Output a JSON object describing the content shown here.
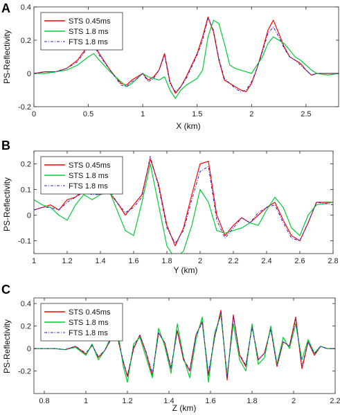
{
  "chart_data": [
    {
      "type": "line",
      "panel_label": "A",
      "xlabel": "X (km)",
      "ylabel": "PS-Reflectivity",
      "xlim": [
        0,
        2.8
      ],
      "ylim": [
        -0.2,
        0.4
      ],
      "xticks": [
        0,
        0.5,
        1,
        1.5,
        2,
        2.5
      ],
      "xtick_labels": [
        "0",
        "0.5",
        "1",
        "1.5",
        "2",
        "2.5"
      ],
      "yticks": [
        -0.2,
        0,
        0.2,
        0.4
      ],
      "ytick_labels": [
        "-0.2",
        "0",
        "0.2",
        "0.4"
      ],
      "legend_position": "top-left",
      "series": [
        {
          "name": "STS 0.45ms",
          "color": "#ff0000",
          "style": "solid",
          "x": [
            0,
            0.1,
            0.2,
            0.3,
            0.4,
            0.5,
            0.55,
            0.6,
            0.7,
            0.8,
            0.85,
            0.9,
            0.95,
            1.0,
            1.05,
            1.1,
            1.15,
            1.2,
            1.25,
            1.3,
            1.35,
            1.4,
            1.45,
            1.5,
            1.55,
            1.6,
            1.65,
            1.7,
            1.75,
            1.8,
            1.85,
            1.9,
            1.95,
            2.0,
            2.05,
            2.1,
            2.15,
            2.2,
            2.25,
            2.3,
            2.35,
            2.4,
            2.45,
            2.5,
            2.55,
            2.6,
            2.7,
            2.8
          ],
          "y": [
            0,
            0.01,
            0.01,
            0.03,
            0.08,
            0.17,
            0.18,
            0.12,
            0.02,
            -0.06,
            -0.07,
            -0.04,
            -0.02,
            0.0,
            -0.04,
            -0.02,
            0.02,
            0.12,
            -0.05,
            -0.12,
            -0.08,
            -0.02,
            0.05,
            0.12,
            0.22,
            0.34,
            0.25,
            0.08,
            -0.04,
            -0.06,
            -0.08,
            -0.1,
            -0.11,
            -0.06,
            0.03,
            0.14,
            0.26,
            0.32,
            0.24,
            0.16,
            0.1,
            0.08,
            0.06,
            0.02,
            -0.01,
            0.0,
            0.0,
            0.0
          ]
        },
        {
          "name": "STS 1.8 ms",
          "color": "#00cc33",
          "style": "solid",
          "x": [
            0,
            0.1,
            0.2,
            0.3,
            0.4,
            0.5,
            0.55,
            0.6,
            0.7,
            0.8,
            0.85,
            0.9,
            0.95,
            1.0,
            1.05,
            1.1,
            1.15,
            1.2,
            1.25,
            1.3,
            1.35,
            1.4,
            1.45,
            1.5,
            1.55,
            1.6,
            1.65,
            1.7,
            1.75,
            1.8,
            1.85,
            1.9,
            1.95,
            2.0,
            2.05,
            2.1,
            2.15,
            2.2,
            2.25,
            2.3,
            2.35,
            2.4,
            2.45,
            2.5,
            2.55,
            2.6,
            2.7,
            2.8
          ],
          "y": [
            0,
            0.0,
            0.01,
            0.02,
            0.05,
            0.1,
            0.12,
            0.08,
            0.01,
            -0.05,
            -0.08,
            -0.06,
            -0.03,
            0.0,
            -0.02,
            -0.03,
            -0.04,
            -0.02,
            -0.1,
            -0.15,
            -0.1,
            -0.07,
            -0.05,
            -0.03,
            0.02,
            0.22,
            0.32,
            0.3,
            0.18,
            0.05,
            0.03,
            0.02,
            0.01,
            0.0,
            0.05,
            0.1,
            0.18,
            0.22,
            0.2,
            0.18,
            0.14,
            0.1,
            0.08,
            0.05,
            0.02,
            0.0,
            -0.01,
            0.0
          ]
        },
        {
          "name": "FTS 1.8 ms",
          "color": "#2222cc",
          "style": "dash-dot",
          "x": [
            0,
            0.1,
            0.2,
            0.3,
            0.4,
            0.5,
            0.55,
            0.6,
            0.7,
            0.8,
            0.85,
            0.9,
            0.95,
            1.0,
            1.05,
            1.1,
            1.15,
            1.2,
            1.25,
            1.3,
            1.35,
            1.4,
            1.45,
            1.5,
            1.55,
            1.6,
            1.65,
            1.7,
            1.75,
            1.8,
            1.85,
            1.9,
            1.95,
            2.0,
            2.05,
            2.1,
            2.15,
            2.2,
            2.25,
            2.3,
            2.35,
            2.4,
            2.45,
            2.5,
            2.55,
            2.6,
            2.7,
            2.8
          ],
          "y": [
            0,
            0.01,
            0.01,
            0.03,
            0.07,
            0.16,
            0.17,
            0.11,
            0.02,
            -0.07,
            -0.08,
            -0.05,
            -0.03,
            0.0,
            -0.05,
            -0.03,
            0.02,
            0.11,
            -0.06,
            -0.11,
            -0.08,
            -0.03,
            0.04,
            0.11,
            0.2,
            0.33,
            0.26,
            0.09,
            -0.03,
            -0.06,
            -0.09,
            -0.11,
            -0.1,
            -0.05,
            0.03,
            0.13,
            0.24,
            0.28,
            0.22,
            0.15,
            0.1,
            0.08,
            0.05,
            0.02,
            -0.01,
            0.0,
            0.0,
            0.0
          ]
        }
      ]
    },
    {
      "type": "line",
      "panel_label": "B",
      "xlabel": "Y (km)",
      "ylabel": "PS-Reflectivity",
      "xlim": [
        1,
        2.8
      ],
      "ylim": [
        -0.15,
        0.25
      ],
      "xticks": [
        1,
        1.2,
        1.4,
        1.6,
        1.8,
        2,
        2.2,
        2.4,
        2.6,
        2.8
      ],
      "xtick_labels": [
        "1",
        "1.2",
        "1.4",
        "1.6",
        "1.8",
        "2",
        "2.2",
        "2.4",
        "2.6",
        "2.8"
      ],
      "yticks": [
        -0.1,
        0,
        0.1,
        0.2
      ],
      "ytick_labels": [
        "-0.1",
        "0",
        "0.1",
        "0.2"
      ],
      "legend_position": "top-left",
      "series": [
        {
          "name": "STS 0.45ms",
          "color": "#ff0000",
          "style": "solid",
          "x": [
            1.0,
            1.05,
            1.1,
            1.15,
            1.2,
            1.25,
            1.3,
            1.35,
            1.4,
            1.45,
            1.5,
            1.55,
            1.6,
            1.65,
            1.7,
            1.75,
            1.8,
            1.85,
            1.9,
            1.95,
            2.0,
            2.05,
            2.1,
            2.15,
            2.2,
            2.25,
            2.3,
            2.35,
            2.4,
            2.45,
            2.5,
            2.55,
            2.6,
            2.65,
            2.7,
            2.8
          ],
          "y": [
            0.02,
            0.03,
            0.04,
            0.02,
            0.06,
            0.07,
            0.1,
            0.09,
            0.08,
            0.09,
            0.05,
            0.0,
            0.04,
            0.08,
            0.22,
            0.12,
            -0.04,
            -0.12,
            -0.05,
            0.08,
            0.2,
            0.21,
            0.0,
            -0.08,
            -0.04,
            -0.01,
            -0.03,
            0.0,
            0.03,
            0.05,
            -0.02,
            -0.08,
            -0.1,
            -0.03,
            0.05,
            0.05
          ]
        },
        {
          "name": "STS 1.8 ms",
          "color": "#00cc33",
          "style": "solid",
          "x": [
            1.0,
            1.05,
            1.1,
            1.15,
            1.2,
            1.25,
            1.3,
            1.35,
            1.4,
            1.45,
            1.5,
            1.55,
            1.6,
            1.65,
            1.7,
            1.75,
            1.8,
            1.85,
            1.9,
            1.95,
            2.0,
            2.05,
            2.1,
            2.15,
            2.2,
            2.25,
            2.3,
            2.35,
            2.4,
            2.45,
            2.5,
            2.55,
            2.6,
            2.65,
            2.7,
            2.8
          ],
          "y": [
            0.06,
            0.04,
            0.03,
            0.0,
            -0.02,
            0.04,
            0.08,
            0.06,
            0.08,
            0.1,
            0.02,
            -0.06,
            -0.08,
            0.05,
            0.2,
            0.04,
            -0.12,
            -0.17,
            -0.14,
            -0.04,
            0.1,
            0.05,
            -0.06,
            -0.07,
            -0.06,
            -0.05,
            -0.03,
            -0.04,
            0.02,
            0.07,
            0.03,
            -0.05,
            -0.08,
            0.0,
            0.04,
            0.05
          ]
        },
        {
          "name": "FTS 1.8 ms",
          "color": "#2222cc",
          "style": "dash-dot",
          "x": [
            1.0,
            1.05,
            1.1,
            1.15,
            1.2,
            1.25,
            1.3,
            1.35,
            1.4,
            1.45,
            1.5,
            1.55,
            1.6,
            1.65,
            1.7,
            1.75,
            1.8,
            1.85,
            1.9,
            1.95,
            2.0,
            2.05,
            2.1,
            2.15,
            2.2,
            2.25,
            2.3,
            2.35,
            2.4,
            2.45,
            2.5,
            2.55,
            2.6,
            2.65,
            2.7,
            2.8
          ],
          "y": [
            0.02,
            0.03,
            0.03,
            0.02,
            0.05,
            0.07,
            0.09,
            0.08,
            0.08,
            0.1,
            0.05,
            0.01,
            0.03,
            0.07,
            0.23,
            0.11,
            -0.05,
            -0.11,
            -0.06,
            0.06,
            0.17,
            0.19,
            -0.02,
            -0.09,
            -0.05,
            -0.01,
            -0.03,
            0.01,
            0.03,
            0.04,
            -0.03,
            -0.09,
            -0.1,
            -0.03,
            0.05,
            0.04
          ]
        }
      ]
    },
    {
      "type": "line",
      "panel_label": "C",
      "xlabel": "Z (km)",
      "ylabel": "PS-Reflectivity",
      "xlim": [
        0.75,
        2.2
      ],
      "ylim": [
        -0.4,
        0.45
      ],
      "xticks": [
        0.8,
        1,
        1.2,
        1.4,
        1.6,
        1.8,
        2,
        2.2
      ],
      "xtick_labels": [
        "0.8",
        "1",
        "1.2",
        "1.4",
        "1.6",
        "1.8",
        "2",
        "2.2"
      ],
      "yticks": [
        -0.2,
        0,
        0.2,
        0.4
      ],
      "ytick_labels": [
        "-0.2",
        "0",
        "0.2",
        "0.4"
      ],
      "legend_position": "top-left",
      "series": [
        {
          "name": "STS 0.45ms",
          "color": "#ff0000",
          "style": "solid",
          "x": [
            0.75,
            0.8,
            0.85,
            0.9,
            0.95,
            1.0,
            1.03,
            1.06,
            1.09,
            1.12,
            1.15,
            1.18,
            1.2,
            1.23,
            1.26,
            1.29,
            1.32,
            1.35,
            1.38,
            1.41,
            1.44,
            1.47,
            1.5,
            1.53,
            1.56,
            1.59,
            1.62,
            1.65,
            1.68,
            1.71,
            1.74,
            1.77,
            1.8,
            1.83,
            1.86,
            1.89,
            1.92,
            1.95,
            1.98,
            2.01,
            2.04,
            2.07,
            2.1,
            2.13,
            2.16,
            2.2
          ],
          "y": [
            0,
            0.0,
            0.0,
            -0.01,
            0.02,
            -0.05,
            0.03,
            -0.08,
            -0.02,
            0.08,
            0.12,
            -0.12,
            -0.25,
            0.0,
            0.12,
            -0.04,
            -0.24,
            0.14,
            0.05,
            -0.18,
            0.16,
            -0.1,
            -0.2,
            0.12,
            0.24,
            -0.24,
            0.1,
            0.34,
            -0.28,
            0.3,
            -0.06,
            -0.16,
            0.2,
            -0.1,
            -0.04,
            0.18,
            -0.16,
            0.06,
            0.02,
            0.28,
            -0.18,
            0.06,
            -0.06,
            0.02,
            0.0,
            0.0
          ]
        },
        {
          "name": "STS 1.8 ms",
          "color": "#00cc33",
          "style": "solid",
          "x": [
            0.75,
            0.8,
            0.85,
            0.9,
            0.95,
            1.0,
            1.03,
            1.06,
            1.09,
            1.12,
            1.15,
            1.18,
            1.2,
            1.23,
            1.26,
            1.29,
            1.32,
            1.35,
            1.38,
            1.41,
            1.44,
            1.47,
            1.5,
            1.53,
            1.56,
            1.59,
            1.62,
            1.65,
            1.68,
            1.71,
            1.74,
            1.77,
            1.8,
            1.83,
            1.86,
            1.89,
            1.92,
            1.95,
            1.98,
            2.01,
            2.04,
            2.07,
            2.1,
            2.13,
            2.16,
            2.2
          ],
          "y": [
            0,
            0.0,
            0.0,
            -0.01,
            0.01,
            -0.06,
            0.04,
            -0.1,
            -0.02,
            0.1,
            0.2,
            -0.16,
            -0.3,
            0.04,
            0.1,
            -0.08,
            -0.26,
            0.18,
            0.02,
            -0.22,
            0.22,
            -0.08,
            -0.26,
            0.08,
            0.28,
            -0.3,
            0.14,
            0.3,
            -0.24,
            0.22,
            -0.1,
            -0.2,
            0.22,
            -0.14,
            -0.08,
            0.2,
            -0.14,
            0.1,
            0.0,
            0.22,
            -0.1,
            0.08,
            -0.04,
            0.02,
            0.0,
            0.0
          ]
        },
        {
          "name": "FTS 1.8 ms",
          "color": "#2222cc",
          "style": "dash-dot",
          "x": [
            0.75,
            0.8,
            0.85,
            0.9,
            0.95,
            1.0,
            1.03,
            1.06,
            1.09,
            1.12,
            1.15,
            1.18,
            1.2,
            1.23,
            1.26,
            1.29,
            1.32,
            1.35,
            1.38,
            1.41,
            1.44,
            1.47,
            1.5,
            1.53,
            1.56,
            1.59,
            1.62,
            1.65,
            1.68,
            1.71,
            1.74,
            1.77,
            1.8,
            1.83,
            1.86,
            1.89,
            1.92,
            1.95,
            1.98,
            2.01,
            2.04,
            2.07,
            2.1,
            2.13,
            2.16,
            2.2
          ],
          "y": [
            0,
            0.0,
            0.0,
            -0.01,
            0.02,
            -0.04,
            0.03,
            -0.07,
            -0.02,
            0.08,
            0.11,
            -0.11,
            -0.24,
            0.01,
            0.12,
            -0.03,
            -0.22,
            0.14,
            0.05,
            -0.17,
            0.16,
            -0.09,
            -0.19,
            0.12,
            0.23,
            -0.22,
            0.1,
            0.32,
            -0.26,
            0.28,
            -0.05,
            -0.15,
            0.19,
            -0.1,
            -0.04,
            0.17,
            -0.15,
            0.06,
            0.02,
            0.26,
            -0.16,
            0.06,
            -0.05,
            0.02,
            0.0,
            0.0
          ]
        }
      ]
    }
  ]
}
